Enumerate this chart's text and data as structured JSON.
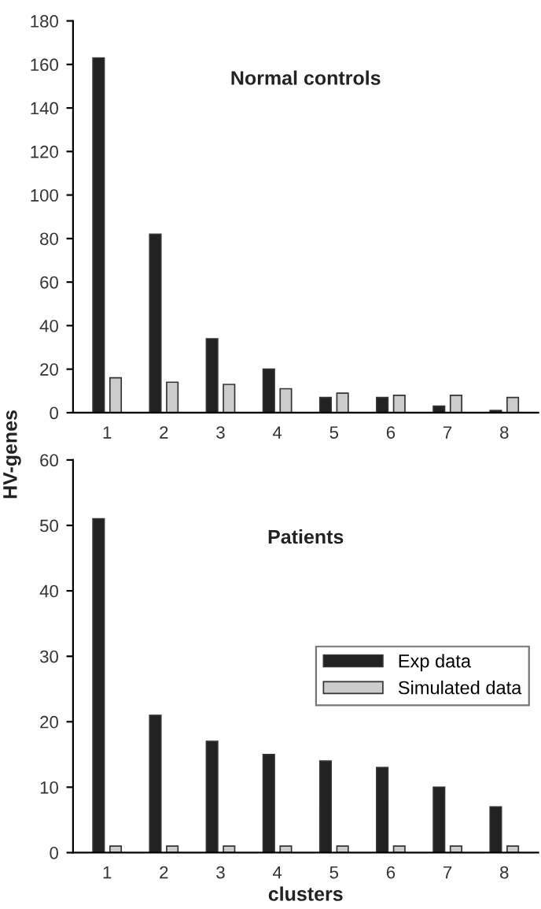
{
  "chart_data": [
    {
      "type": "bar",
      "title": "Normal controls",
      "ylabel": "HV-genes",
      "categories": [
        "1",
        "2",
        "3",
        "4",
        "5",
        "6",
        "7",
        "8"
      ],
      "series": [
        {
          "color": "#222222",
          "values": [
            163,
            82,
            34,
            20,
            7,
            7,
            3,
            1
          ]
        },
        {
          "color": "#cccccc",
          "values": [
            16,
            14,
            13,
            11,
            9,
            8,
            8,
            7
          ]
        }
      ],
      "ylim": [
        0,
        180
      ],
      "yticks": [
        0,
        20,
        40,
        60,
        80,
        100,
        120,
        140,
        160,
        180
      ],
      "grid": false,
      "legend": false
    },
    {
      "type": "bar",
      "title": "Patients",
      "xlabel": "clusters",
      "categories": [
        "1",
        "2",
        "3",
        "4",
        "5",
        "6",
        "7",
        "8"
      ],
      "series": [
        {
          "name": "Exp data",
          "color": "#222222",
          "values": [
            51,
            21,
            17,
            15,
            14,
            13,
            10,
            7
          ]
        },
        {
          "name": "Simulated data",
          "color": "#cccccc",
          "values": [
            1,
            1,
            1,
            1,
            1,
            1,
            1,
            1
          ]
        }
      ],
      "ylim": [
        0,
        60
      ],
      "yticks": [
        0,
        10,
        20,
        30,
        40,
        50,
        60
      ],
      "grid": false,
      "legend": "right"
    }
  ]
}
